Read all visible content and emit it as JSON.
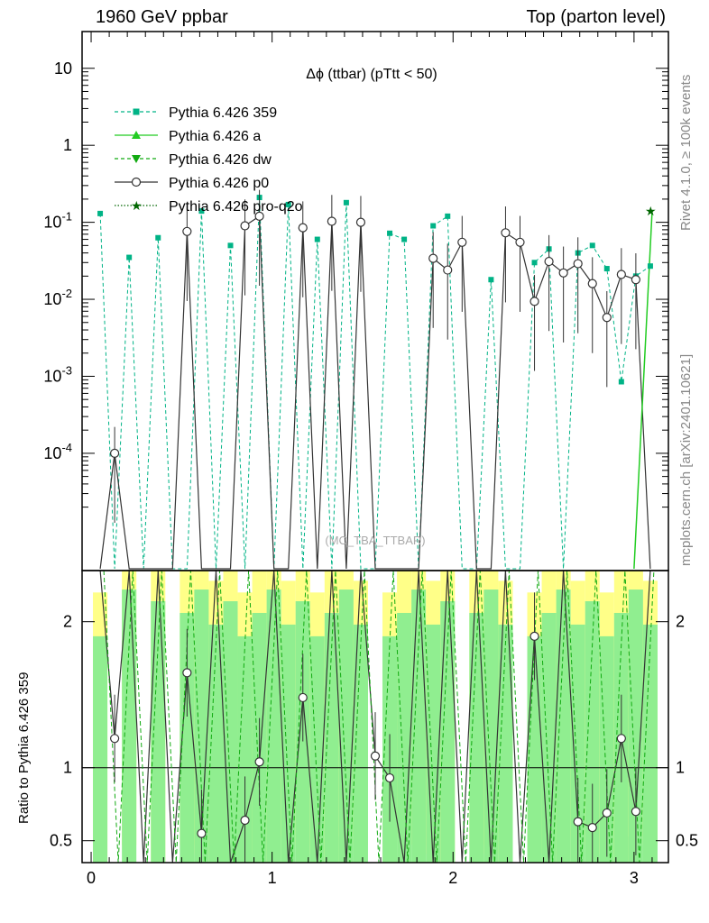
{
  "header": {
    "left": "1960 GeV ppbar",
    "right": "Top (parton level)"
  },
  "side_labels": {
    "top": "Rivet 4.1.0, ≥ 100k events",
    "bottom": "mcplots.cern.ch [arXiv:2401.10621]"
  },
  "chart_data": {
    "type": "line",
    "title": "Δϕ (ttbar) (pTtt < 50)",
    "watermark": "(MC_TBA_TTBAR)",
    "xlabel": "",
    "ylabel_main": "",
    "ylabel_ratio": "Ratio to Pythia 6.426 359",
    "xlim": [
      -0.05,
      3.19
    ],
    "ylim_main": [
      3e-06,
      30
    ],
    "ylim_ratio": [
      0.35,
      2.35
    ],
    "x_ticks": [
      "0",
      "1",
      "2",
      "3"
    ],
    "y_ticks_main": [
      "10",
      "1",
      "10^-1",
      "10^-2",
      "10^-3",
      "10^-4"
    ],
    "y_ticks_ratio": [
      "2",
      "1",
      "0.5"
    ],
    "legend": [
      {
        "name": "Pythia 6.426 359",
        "color": "#00b386",
        "marker": "square",
        "dash": "dashed"
      },
      {
        "name": "Pythia 6.426 a",
        "color": "#22cc22",
        "marker": "triangle-up",
        "dash": "solid"
      },
      {
        "name": "Pythia 6.426 dw",
        "color": "#11aa11",
        "marker": "triangle-down",
        "dash": "dashed"
      },
      {
        "name": "Pythia 6.426 p0",
        "color": "#333333",
        "marker": "open-circle",
        "dash": "solid"
      },
      {
        "name": "Pythia 6.426 pro-q2o",
        "color": "#006600",
        "marker": "star",
        "dash": "dotted"
      }
    ],
    "x": [
      0.05,
      0.13,
      0.21,
      0.29,
      0.37,
      0.45,
      0.53,
      0.61,
      0.69,
      0.77,
      0.85,
      0.93,
      1.01,
      1.09,
      1.17,
      1.25,
      1.33,
      1.41,
      1.49,
      1.57,
      1.65,
      1.73,
      1.81,
      1.89,
      1.97,
      2.05,
      2.13,
      2.21,
      2.29,
      2.37,
      2.45,
      2.53,
      2.61,
      2.69,
      2.77,
      2.85,
      2.93,
      3.01,
      3.09
    ],
    "series": [
      {
        "name": "Pythia 6.426 359",
        "values": [
          0.13,
          0,
          0.035,
          0,
          0.063,
          0,
          0,
          0.14,
          0,
          0.05,
          0,
          0.21,
          0,
          0.17,
          0,
          0.06,
          0,
          0.18,
          0,
          0,
          0.072,
          0.06,
          0,
          0.09,
          0.12,
          0,
          0,
          0.018,
          0,
          0,
          0.03,
          0.045,
          0,
          0.04,
          0.05,
          0.025,
          0.00085,
          0.02,
          0.027
        ]
      },
      {
        "name": "Pythia 6.426 p0",
        "values": [
          0,
          0.0001,
          0,
          0,
          0,
          0,
          0.076,
          0,
          0,
          0,
          0.09,
          0.12,
          0,
          0,
          0.085,
          0,
          0.103,
          0,
          0.1,
          0,
          0,
          0,
          0,
          0.034,
          0.024,
          0.055,
          0,
          0,
          0.073,
          0.055,
          0.0094,
          0.031,
          0.022,
          0.029,
          0.016,
          0.0058,
          0.021,
          0.018,
          0
        ]
      }
    ],
    "ratio_p0": [
      null,
      1.2,
      null,
      null,
      null,
      null,
      1.65,
      0.55,
      null,
      null,
      0.64,
      1.04,
      null,
      null,
      1.48,
      null,
      null,
      null,
      null,
      1.08,
      0.93,
      null,
      null,
      null,
      null,
      null,
      null,
      null,
      null,
      null,
      1.9,
      null,
      null,
      0.63,
      0.59,
      0.69,
      1.2,
      0.7,
      null
    ]
  }
}
